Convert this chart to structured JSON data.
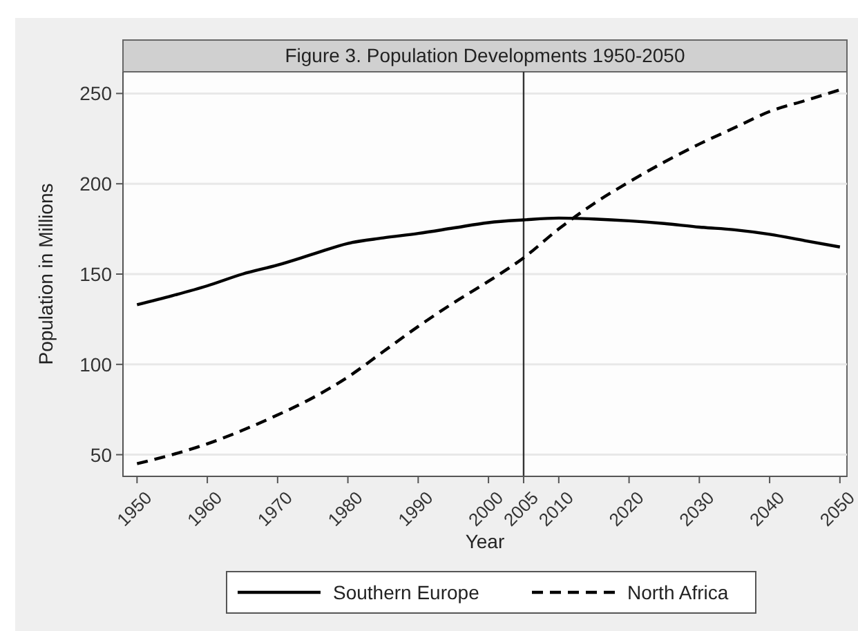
{
  "chart_data": {
    "type": "line",
    "title": "Figure 3. Population Developments 1950-2050",
    "xlabel": "Year",
    "ylabel": "Population in Millions",
    "x": [
      1950,
      1955,
      1960,
      1965,
      1970,
      1975,
      1980,
      1985,
      1990,
      1995,
      2000,
      2005,
      2010,
      2015,
      2020,
      2025,
      2030,
      2035,
      2040,
      2045,
      2050
    ],
    "series": [
      {
        "name": "Southern Europe",
        "color": "#000000",
        "line_style": "solid",
        "values": [
          133,
          138,
          143.5,
          150,
          155,
          161,
          167,
          170,
          172.5,
          175.5,
          178.5,
          180,
          181,
          180.5,
          179.5,
          178,
          176,
          174.5,
          172,
          168.5,
          165
        ]
      },
      {
        "name": "North Africa",
        "color": "#000000",
        "line_style": "dashed",
        "values": [
          45,
          50,
          56,
          63.5,
          72,
          81.5,
          93,
          107,
          121,
          134,
          146,
          159,
          175,
          189,
          201,
          212,
          222,
          231,
          240,
          246,
          252
        ]
      }
    ],
    "xlim": [
      1948,
      2051
    ],
    "xticks": [
      1950,
      1960,
      1970,
      1980,
      1990,
      2000,
      2005,
      2010,
      2020,
      2030,
      2040,
      2050
    ],
    "ylim": [
      38,
      262
    ],
    "yticks": [
      50,
      100,
      150,
      200,
      250
    ],
    "ref_lines": [
      {
        "axis": "x",
        "value": 2005,
        "color": "#333333"
      }
    ],
    "grid": "y",
    "legend": "bottom",
    "marker": "none"
  }
}
